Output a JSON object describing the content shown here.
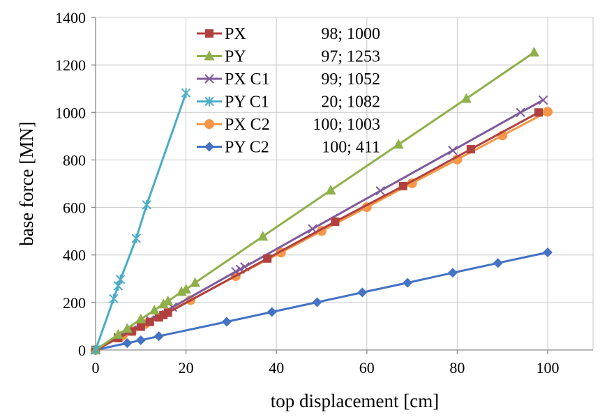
{
  "chart_data": {
    "type": "line",
    "title": "",
    "xlabel": "top displacement [cm]",
    "ylabel": "base force [MN]",
    "xlim": [
      0,
      110
    ],
    "ylim": [
      0,
      1400
    ],
    "xticks": [
      0,
      20,
      40,
      60,
      80,
      100
    ],
    "yticks": [
      0,
      200,
      400,
      600,
      800,
      1000,
      1200,
      1400
    ],
    "grid": "horizontal and vertical",
    "legend_position": "top-left",
    "series": [
      {
        "name": "PX",
        "legend_value": "98; 1000",
        "color": "#b0413e",
        "marker": "square",
        "points": [
          [
            0,
            0
          ],
          [
            5,
            50
          ],
          [
            8,
            78
          ],
          [
            10,
            98
          ],
          [
            12,
            118
          ],
          [
            14,
            137
          ],
          [
            15,
            147
          ],
          [
            16,
            157
          ],
          [
            38,
            385
          ],
          [
            53,
            540
          ],
          [
            68,
            690
          ],
          [
            83,
            845
          ],
          [
            98,
            1000
          ]
        ]
      },
      {
        "name": "PY",
        "legend_value": "97; 1253",
        "color": "#8fb04a",
        "marker": "triangle",
        "points": [
          [
            0,
            0
          ],
          [
            5,
            65
          ],
          [
            7,
            90
          ],
          [
            10,
            130
          ],
          [
            13,
            167
          ],
          [
            15,
            193
          ],
          [
            16,
            205
          ],
          [
            19,
            245
          ],
          [
            20,
            255
          ],
          [
            22,
            283
          ],
          [
            37,
            478
          ],
          [
            52,
            672
          ],
          [
            67,
            865
          ],
          [
            82,
            1058
          ],
          [
            97,
            1253
          ]
        ]
      },
      {
        "name": "PX C1",
        "legend_value": "99; 1052",
        "color": "#7e5a9b",
        "marker": "x",
        "points": [
          [
            0,
            0
          ],
          [
            5,
            53
          ],
          [
            8,
            85
          ],
          [
            10,
            106
          ],
          [
            12,
            127
          ],
          [
            14,
            149
          ],
          [
            17,
            180
          ],
          [
            31,
            330
          ],
          [
            32,
            340
          ],
          [
            33,
            350
          ],
          [
            48,
            510
          ],
          [
            63,
            670
          ],
          [
            79,
            840
          ],
          [
            94,
            1000
          ],
          [
            99,
            1052
          ]
        ]
      },
      {
        "name": "PY C1",
        "legend_value": "20; 1082",
        "color": "#4bacc6",
        "marker": "asterisk",
        "points": [
          [
            0,
            0
          ],
          [
            4,
            216
          ],
          [
            5,
            270
          ],
          [
            5.5,
            297
          ],
          [
            9,
            470
          ],
          [
            11.3,
            611
          ],
          [
            20,
            1082
          ]
        ]
      },
      {
        "name": "PX C2",
        "legend_value": "100; 1003",
        "color": "#f79646",
        "marker": "circle",
        "points": [
          [
            0,
            0
          ],
          [
            6,
            60
          ],
          [
            8,
            80
          ],
          [
            11,
            110
          ],
          [
            21,
            210
          ],
          [
            31,
            311
          ],
          [
            41,
            410
          ],
          [
            50,
            501
          ],
          [
            60,
            601
          ],
          [
            70,
            702
          ],
          [
            80,
            802
          ],
          [
            90,
            903
          ],
          [
            100,
            1003
          ]
        ]
      },
      {
        "name": "PY C2",
        "legend_value": "100; 411",
        "color": "#4472c4",
        "marker": "diamond",
        "points": [
          [
            0,
            0
          ],
          [
            7,
            29
          ],
          [
            10,
            41
          ],
          [
            14,
            58
          ],
          [
            29,
            119
          ],
          [
            39,
            160
          ],
          [
            49,
            201
          ],
          [
            59,
            242
          ],
          [
            69,
            283
          ],
          [
            79,
            325
          ],
          [
            89,
            366
          ],
          [
            100,
            411
          ]
        ]
      }
    ]
  }
}
